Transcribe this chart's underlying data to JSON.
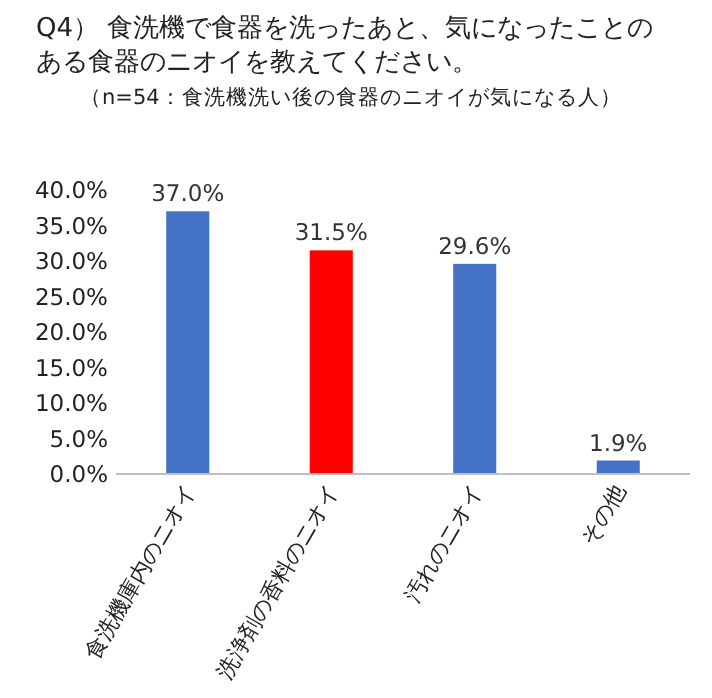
{
  "chart_data": {
    "type": "bar",
    "title": "Q4） 食洗機で食器を洗ったあと、気になったことのある食器のニオイを教えてください。",
    "subtitle": "（n=54：食洗機洗い後の食器のニオイが気になる人）",
    "categories": [
      "食洗機庫内のニオイ",
      "洗浄剤の香料のニオイ",
      "汚れのニオイ",
      "その他"
    ],
    "values": [
      37.0,
      31.5,
      29.6,
      1.9
    ],
    "colors": [
      "#4472c4",
      "#ff0000",
      "#4472c4",
      "#4472c4"
    ],
    "value_labels": [
      "37.0%",
      "31.5%",
      "29.6%",
      "1.9%"
    ],
    "ylim": [
      0,
      40
    ],
    "yticks": [
      {
        "value": 0,
        "label": "0.0%"
      },
      {
        "value": 5,
        "label": "5.0%"
      },
      {
        "value": 10,
        "label": "10.0%"
      },
      {
        "value": 15,
        "label": "15.0%"
      },
      {
        "value": 20,
        "label": "20.0%"
      },
      {
        "value": 25,
        "label": "25.0%"
      },
      {
        "value": 30,
        "label": "30.0%"
      },
      {
        "value": 35,
        "label": "35.0%"
      },
      {
        "value": 40,
        "label": "40.0%"
      }
    ],
    "grid": false
  }
}
